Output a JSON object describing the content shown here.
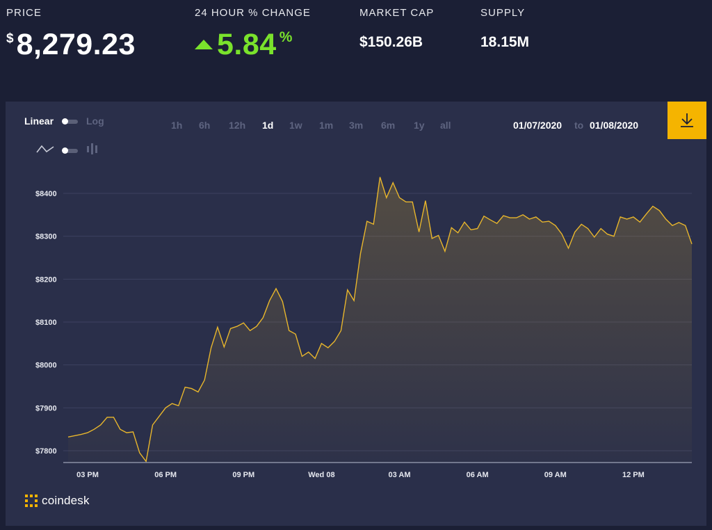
{
  "stats": {
    "price": {
      "label": "PRICE",
      "symbol": "$",
      "value": "8,279.23"
    },
    "change": {
      "label": "24 HOUR % CHANGE",
      "value": "5.84",
      "unit": "%",
      "direction": "up",
      "color": "#7ae22c"
    },
    "market_cap": {
      "label": "MARKET CAP",
      "value": "$150.26B"
    },
    "supply": {
      "label": "SUPPLY",
      "value": "18.15M"
    }
  },
  "toolbar": {
    "scale_linear": "Linear",
    "scale_log": "Log",
    "ranges": [
      "1h",
      "6h",
      "12h",
      "1d",
      "1w",
      "1m",
      "3m",
      "6m",
      "1y",
      "all"
    ],
    "active_range": "1d",
    "date_from": "01/07/2020",
    "date_to_label": "to",
    "date_to": "01/08/2020",
    "download_icon": "download-icon",
    "line_icon": "line-chart-icon",
    "candle_icon": "candlestick-icon"
  },
  "brand": {
    "name": "coindesk",
    "accent": "#f5b400"
  },
  "colors": {
    "line": "#e8b62c",
    "up": "#7ae22c",
    "panel": "#2a2f4a",
    "background": "#1b1f35"
  },
  "chart_data": {
    "type": "area",
    "title": "",
    "xlabel": "",
    "ylabel": "",
    "ylim": [
      7775,
      8450
    ],
    "y_ticks": [
      {
        "value": 7800,
        "label": "$7800"
      },
      {
        "value": 7900,
        "label": "$7900"
      },
      {
        "value": 8000,
        "label": "$8000"
      },
      {
        "value": 8100,
        "label": "$8100"
      },
      {
        "value": 8200,
        "label": "$8200"
      },
      {
        "value": 8300,
        "label": "$8300"
      },
      {
        "value": 8400,
        "label": "$8400"
      }
    ],
    "x_ticks": [
      "03 PM",
      "06 PM",
      "09 PM",
      "Wed 08",
      "03 AM",
      "06 AM",
      "09 AM",
      "12 PM"
    ],
    "x_tick_index": [
      3,
      15,
      27,
      39,
      51,
      63,
      75,
      87
    ],
    "grid": true,
    "series": [
      {
        "values": [
          7832,
          7835,
          7838,
          7842,
          7850,
          7860,
          7878,
          7878,
          7850,
          7842,
          7844,
          7795,
          7775,
          7860,
          7880,
          7900,
          7910,
          7905,
          7948,
          7945,
          7937,
          7965,
          8040,
          8088,
          8042,
          8085,
          8090,
          8098,
          8080,
          8090,
          8110,
          8150,
          8178,
          8148,
          8080,
          8072,
          8020,
          8030,
          8015,
          8050,
          8040,
          8055,
          8080,
          8175,
          8150,
          8260,
          8335,
          8328,
          8438,
          8390,
          8425,
          8390,
          8380,
          8380,
          8310,
          8383,
          8295,
          8302,
          8265,
          8320,
          8308,
          8333,
          8315,
          8318,
          8347,
          8338,
          8330,
          8348,
          8343,
          8343,
          8350,
          8340,
          8345,
          8333,
          8335,
          8325,
          8305,
          8272,
          8310,
          8328,
          8318,
          8298,
          8318,
          8305,
          8300,
          8345,
          8340,
          8345,
          8333,
          8352,
          8370,
          8360,
          8340,
          8325,
          8332,
          8325,
          8282
        ]
      }
    ]
  }
}
